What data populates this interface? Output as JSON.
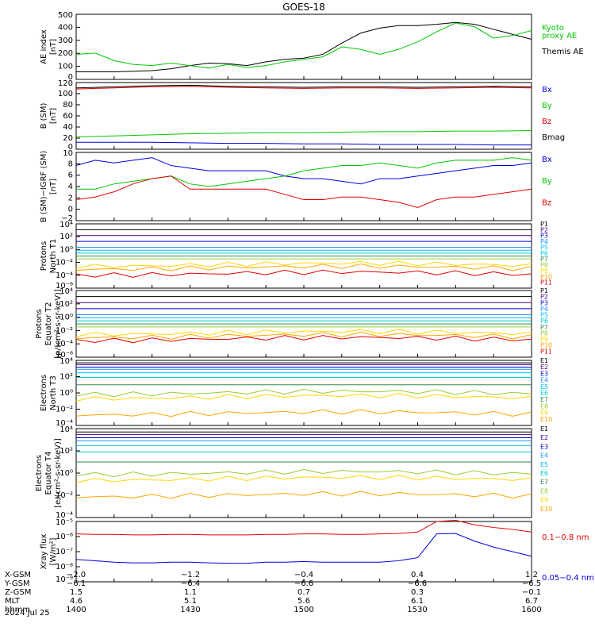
{
  "title": "GOES-18",
  "colors": {
    "black": "#000000",
    "green": "#00c800",
    "red": "#e00000",
    "blue": "#0000e0",
    "ladder": [
      "#000000",
      "#4b0082",
      "#0000cd",
      "#1e90ff",
      "#00bfff",
      "#00ced1",
      "#2e8b57",
      "#9acd32",
      "#ffd700",
      "#ffa500",
      "#e00000"
    ]
  },
  "panels": [
    {
      "id": "ae",
      "ylabel": [
        "AE index",
        "[nT]"
      ],
      "yticks": [
        "500",
        "400",
        "300",
        "200",
        "100",
        "0"
      ],
      "legend": [
        {
          "text": "Kyoto",
          "color": "#00c800"
        },
        {
          "text": "proxy AE",
          "color": "#00c800"
        },
        {
          "text": "",
          "color": "#000"
        },
        {
          "text": "Themis AE",
          "color": "#000000"
        }
      ]
    },
    {
      "id": "bsm",
      "ylabel": [
        "B (SM)",
        "[nT]"
      ],
      "yticks": [
        "120",
        "100",
        "80",
        "60",
        "40",
        "20",
        "0"
      ],
      "legend": [
        {
          "text": "Bx",
          "color": "#0000e0"
        },
        {
          "text": "By",
          "color": "#00c800"
        },
        {
          "text": "Bz",
          "color": "#e00000"
        },
        {
          "text": "Bmag",
          "color": "#000000"
        }
      ]
    },
    {
      "id": "bigrf",
      "ylabel": [
        "B (SM)−IGRF (SM)",
        "[nT]"
      ],
      "yticks": [
        "10",
        "8",
        "6",
        "4",
        "2",
        "0",
        "−2"
      ],
      "legend": [
        {
          "text": "Bx",
          "color": "#0000e0"
        },
        {
          "text": "By",
          "color": "#00c800"
        },
        {
          "text": "Bz",
          "color": "#e00000"
        }
      ]
    },
    {
      "id": "pn",
      "ylabel": [
        "Protons",
        "North T1"
      ],
      "yticks": [
        "10⁴",
        "10²",
        "10⁰",
        "10⁻²",
        "10⁻⁴",
        "10⁻⁶"
      ],
      "legend": [
        "P1",
        "P2",
        "P3",
        "P4",
        "P5",
        "P6",
        "P7",
        "P8",
        "P9",
        "P10",
        "P11"
      ]
    },
    {
      "id": "pe",
      "ylabel": [
        "Protons",
        "Equator T2",
        "[p/(cm²-s-sr-keV)]"
      ],
      "yticks": [
        "10⁴",
        "10²",
        "10⁰",
        "10⁻²",
        "10⁻⁴",
        "10⁻⁶"
      ],
      "legend": [
        "P1",
        "P2",
        "P3",
        "P4",
        "P5",
        "P6",
        "P7",
        "P8",
        "P9",
        "P10",
        "P11"
      ]
    },
    {
      "id": "en",
      "ylabel": [
        "Electrons",
        "North T3"
      ],
      "yticks": [
        "10⁴",
        "10²",
        "10⁰",
        "10⁻²",
        "10⁻⁴"
      ],
      "legend": [
        "E1",
        "E2",
        "E3",
        "E4",
        "E5",
        "E6",
        "E7",
        "E8",
        "E9",
        "E10"
      ]
    },
    {
      "id": "ee",
      "ylabel": [
        "Electrons",
        "Equator T4",
        "[e/(cm²-s-sr-keV)]"
      ],
      "yticks": [
        "10⁴",
        "10²",
        "10⁰",
        "10⁻²",
        "10⁻⁴"
      ],
      "legend": [
        "E1",
        "E2",
        "E3",
        "E4",
        "E5",
        "E6",
        "E7",
        "E8",
        "E9",
        "E10"
      ]
    },
    {
      "id": "xray",
      "ylabel": [
        "Xray flux",
        "[W/m²]"
      ],
      "yticks": [
        "10⁻⁵",
        "10⁻⁶",
        "10⁻⁷",
        "10⁻⁸",
        "10⁻⁹"
      ],
      "legend": [
        {
          "text": "0.1−0.8 nm",
          "color": "#e00000"
        },
        {
          "text": "0.05−0.4 nm",
          "color": "#0000e0"
        }
      ]
    }
  ],
  "footer": {
    "rows": [
      {
        "label": "X-GSM",
        "values": [
          "−2.0",
          "−1.2",
          "−0.4",
          "0.4",
          "1.2"
        ]
      },
      {
        "label": "Y-GSM",
        "values": [
          "−6.1",
          "−6.4",
          "−6.6",
          "−6.6",
          "−6.5"
        ]
      },
      {
        "label": "Z-GSM",
        "values": [
          "1.5",
          "1.1",
          "0.7",
          "0.3",
          "−0.1"
        ]
      },
      {
        "label": "MLT",
        "values": [
          "4.6",
          "5.1",
          "5.6",
          "6.1",
          "6.7"
        ]
      },
      {
        "label": "hhmm",
        "values": [
          "1400",
          "1430",
          "1500",
          "1530",
          "1600"
        ]
      }
    ],
    "date": "2024 Jul 25"
  },
  "chart_data": [
    {
      "type": "line",
      "panel": "AE index",
      "xlabel": "",
      "ylabel": "AE index [nT]",
      "ylim": [
        0,
        520
      ],
      "x": [
        1400,
        1405,
        1410,
        1415,
        1420,
        1425,
        1430,
        1435,
        1440,
        1445,
        1450,
        1455,
        1500,
        1505,
        1510,
        1515,
        1520,
        1525,
        1530,
        1535,
        1540,
        1545,
        1550,
        1555,
        1600
      ],
      "series": [
        {
          "name": "Themis AE",
          "color": "#000000",
          "values": [
            60,
            60,
            60,
            65,
            70,
            85,
            110,
            130,
            125,
            110,
            140,
            160,
            170,
            200,
            290,
            370,
            410,
            430,
            430,
            440,
            455,
            440,
            400,
            360,
            320
          ]
        },
        {
          "name": "Kyoto proxy AE",
          "color": "#00c800",
          "values": [
            200,
            210,
            150,
            120,
            110,
            130,
            110,
            90,
            120,
            95,
            110,
            140,
            160,
            180,
            260,
            240,
            200,
            240,
            300,
            380,
            450,
            420,
            330,
            350,
            390
          ]
        }
      ]
    },
    {
      "type": "line",
      "panel": "B (SM)",
      "ylabel": "B (SM) [nT]",
      "ylim": [
        -5,
        120
      ],
      "x": [
        1400,
        1410,
        1420,
        1430,
        1440,
        1450,
        1500,
        1510,
        1520,
        1530,
        1540,
        1550,
        1600
      ],
      "series": [
        {
          "name": "Bx",
          "color": "#0000e0",
          "values": [
            8,
            8,
            8,
            7,
            6,
            6,
            5,
            5,
            4,
            4,
            4,
            3,
            3
          ]
        },
        {
          "name": "By",
          "color": "#00c800",
          "values": [
            18,
            20,
            22,
            24,
            25,
            26,
            26,
            27,
            28,
            28,
            29,
            29,
            30
          ]
        },
        {
          "name": "Bz",
          "color": "#e00000",
          "values": [
            108,
            110,
            112,
            113,
            111,
            110,
            109,
            110,
            110,
            109,
            110,
            111,
            110
          ]
        },
        {
          "name": "Bmag",
          "color": "#000000",
          "values": [
            110,
            112,
            114,
            115,
            113,
            112,
            111,
            112,
            112,
            111,
            112,
            113,
            112
          ]
        }
      ]
    },
    {
      "type": "line",
      "panel": "B (SM)-IGRF (SM)",
      "ylabel": "B (SM)−IGRF (SM) [nT]",
      "ylim": [
        -3,
        10
      ],
      "x": [
        1400,
        1405,
        1410,
        1415,
        1420,
        1425,
        1430,
        1435,
        1440,
        1445,
        1450,
        1455,
        1500,
        1505,
        1510,
        1515,
        1520,
        1525,
        1530,
        1535,
        1540,
        1545,
        1550,
        1555,
        1600
      ],
      "series": [
        {
          "name": "Bx",
          "color": "#0000e0",
          "values": [
            7.5,
            8.5,
            8,
            8.5,
            9,
            7.5,
            7,
            6.5,
            6.5,
            6.5,
            6.5,
            5.5,
            5,
            5,
            4.5,
            4,
            5,
            5,
            5.5,
            6,
            6.5,
            7,
            7.5,
            7.5,
            8
          ]
        },
        {
          "name": "By",
          "color": "#00c800",
          "values": [
            3,
            3,
            4,
            4.5,
            5,
            5.5,
            4,
            3.5,
            4,
            4.5,
            5,
            5.5,
            6.5,
            7,
            7.5,
            7.5,
            8,
            7.5,
            7,
            8,
            8.5,
            8.5,
            8.5,
            9,
            8.5
          ]
        },
        {
          "name": "Bz",
          "color": "#e00000",
          "values": [
            1,
            1.5,
            2.5,
            4,
            5,
            5.5,
            3,
            3,
            3,
            3,
            3,
            2,
            1,
            1,
            1.5,
            1.5,
            1,
            0.5,
            -0.5,
            1,
            1.5,
            1.5,
            2,
            2.5,
            3
          ]
        }
      ]
    },
    {
      "type": "line",
      "panel": "Protons North T1",
      "ylabel": "Protons North T1",
      "ylim": [
        1e-07,
        10000.0
      ],
      "yscale": "log",
      "series_names": [
        "P1",
        "P2",
        "P3",
        "P4",
        "P5",
        "P6",
        "P7",
        "P8",
        "P9",
        "P10",
        "P11"
      ],
      "levels": [
        1000,
        100,
        10,
        1,
        0.3,
        0.1,
        0.03,
        0.01,
        0.001,
        0.0003,
        3e-05
      ]
    },
    {
      "type": "line",
      "panel": "Protons Equator T2",
      "ylabel": "[p/(cm²-s-sr-keV)]",
      "ylim": [
        1e-07,
        10000.0
      ],
      "yscale": "log",
      "series_names": [
        "P1",
        "P2",
        "P3",
        "P4",
        "P5",
        "P6",
        "P7",
        "P8",
        "P9",
        "P10",
        "P11"
      ],
      "levels": [
        1000,
        100,
        10,
        1,
        0.3,
        0.1,
        0.03,
        0.01,
        0.001,
        0.0003,
        0.0001
      ]
    },
    {
      "type": "line",
      "panel": "Electrons North T3",
      "ylabel": "Electrons North T3",
      "ylim": [
        0.0001,
        10000.0
      ],
      "yscale": "log",
      "series_names": [
        "E1",
        "E2",
        "E3",
        "E4",
        "E5",
        "E6",
        "E7",
        "E8",
        "E9",
        "E10"
      ],
      "levels": [
        5000,
        3000,
        1500,
        800,
        300,
        80,
        10,
        1,
        0.3,
        0.003
      ]
    },
    {
      "type": "line",
      "panel": "Electrons Equator T4",
      "ylabel": "[e/(cm²-s-sr-keV)]",
      "ylim": [
        0.0001,
        10000.0
      ],
      "yscale": "log",
      "series_names": [
        "E1",
        "E2",
        "E3",
        "E4",
        "E5",
        "E6",
        "E7",
        "E8",
        "E9",
        "E10"
      ],
      "levels": [
        5000,
        3000,
        1500,
        800,
        300,
        80,
        10,
        1,
        0.3,
        0.01
      ]
    },
    {
      "type": "line",
      "panel": "Xray flux",
      "ylabel": "Xray flux [W/m²]",
      "ylim": [
        1e-09,
        1e-05
      ],
      "yscale": "log",
      "x": [
        1400,
        1405,
        1410,
        1415,
        1420,
        1425,
        1430,
        1435,
        1440,
        1445,
        1450,
        1455,
        1500,
        1505,
        1510,
        1515,
        1520,
        1525,
        1530,
        1535,
        1540,
        1545,
        1550,
        1555,
        1600
      ],
      "series": [
        {
          "name": "0.1−0.8 nm",
          "color": "#e00000",
          "values": [
            1.5e-06,
            1.4e-06,
            1.4e-06,
            1.3e-06,
            1.3e-06,
            1.4e-06,
            1.4e-06,
            1.3e-06,
            1.3e-06,
            1.3e-06,
            1.4e-06,
            1.4e-06,
            1.5e-06,
            1.5e-06,
            1.4e-06,
            1.4e-06,
            1.5e-06,
            1.6e-06,
            2e-06,
            1e-05,
            1.2e-05,
            6e-06,
            4e-06,
            3e-06,
            2e-06
          ]
        },
        {
          "name": "0.05−0.4 nm",
          "color": "#0000e0",
          "values": [
            3e-08,
            2.5e-08,
            2e-08,
            1.8e-08,
            1.8e-08,
            2e-08,
            2e-08,
            1.8e-08,
            1.7e-08,
            1.7e-08,
            2e-08,
            2e-08,
            2.2e-08,
            2e-08,
            2e-08,
            2e-08,
            2e-08,
            2.5e-08,
            4e-08,
            1.5e-06,
            1.6e-06,
            5e-07,
            2e-07,
            1e-07,
            5e-08
          ]
        }
      ]
    }
  ]
}
